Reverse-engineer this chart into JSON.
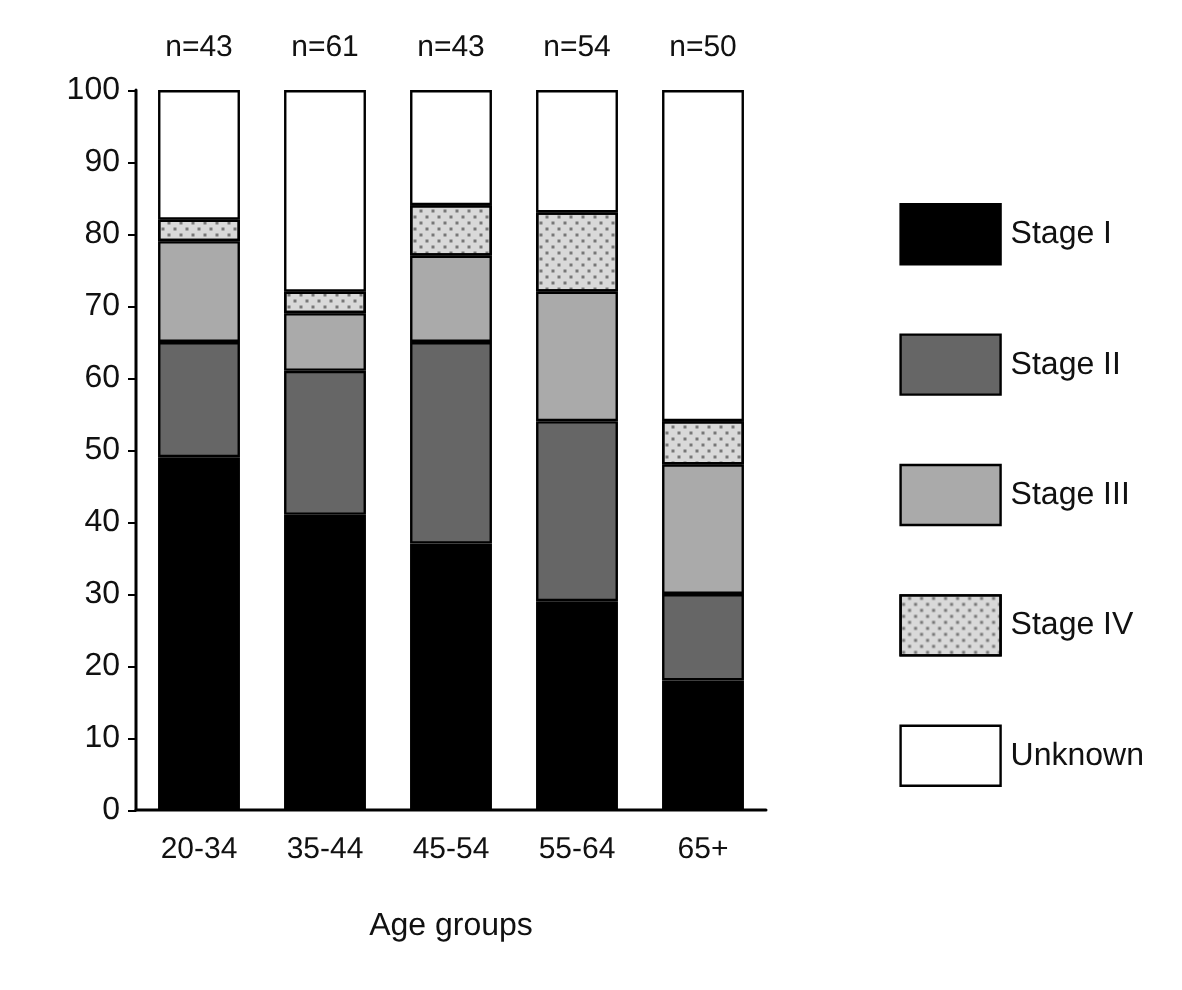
{
  "chart_data": {
    "type": "bar",
    "stacked": true,
    "xlabel": "Age groups",
    "categories": [
      "20-34",
      "35-44",
      "45-54",
      "55-64",
      "65+"
    ],
    "series": [
      {
        "name": "Stage I",
        "color": "#000000",
        "values": [
          49,
          41,
          37,
          29,
          18
        ]
      },
      {
        "name": "Stage II",
        "color": "#666666",
        "values": [
          16,
          20,
          28,
          25,
          12
        ]
      },
      {
        "name": "Stage III",
        "color": "#aaaaaa",
        "values": [
          14,
          8,
          12,
          18,
          18
        ]
      },
      {
        "name": "Stage IV",
        "color": "#d9d9d9",
        "values": [
          3,
          3,
          7,
          11,
          6
        ]
      },
      {
        "name": "Unknown",
        "color": "#ffffff",
        "values": [
          18,
          28,
          16,
          17,
          46
        ]
      }
    ],
    "ylim": [
      0,
      100
    ],
    "yticks": [
      0,
      10,
      20,
      30,
      40,
      50,
      60,
      70,
      80,
      90,
      100
    ],
    "grid": false,
    "legend": "right",
    "annotations": [
      {
        "text": "n=43",
        "x": "20-34",
        "y": 100
      },
      {
        "text": "n=61",
        "x": "35-44",
        "y": 100
      },
      {
        "text": "n=43",
        "x": "45-54",
        "y": 100
      },
      {
        "text": "n=54",
        "x": "55-64",
        "y": 100
      },
      {
        "text": "n=50",
        "x": "65+",
        "y": 100
      }
    ]
  }
}
